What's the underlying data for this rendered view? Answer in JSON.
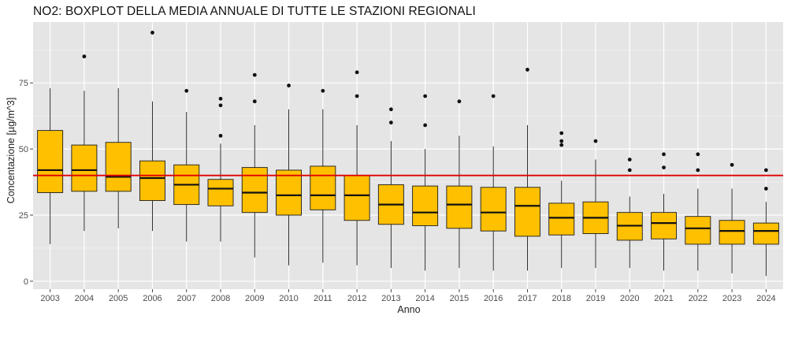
{
  "chart_data": {
    "type": "boxplot",
    "title": "NO2: BOXPLOT DELLA MEDIA ANNUALE DI TUTTE LE STAZIONI REGIONALI",
    "xlabel": "Anno",
    "ylabel": "Concentazione [µg/m^3]",
    "ylim": [
      -3,
      98
    ],
    "yticks": [
      0,
      25,
      50,
      75
    ],
    "grid": true,
    "background": "#e5e5e5",
    "box_color": "#ffc000",
    "reference_line": {
      "value": 40,
      "color": "#e00000"
    },
    "categories": [
      "2003",
      "2004",
      "2005",
      "2006",
      "2007",
      "2008",
      "2009",
      "2010",
      "2011",
      "2012",
      "2013",
      "2014",
      "2015",
      "2016",
      "2017",
      "2018",
      "2019",
      "2020",
      "2021",
      "2022",
      "2023",
      "2024"
    ],
    "boxes": [
      {
        "year": "2003",
        "low": 14,
        "q1": 33.5,
        "median": 42,
        "q3": 57,
        "high": 73,
        "outliers": []
      },
      {
        "year": "2004",
        "low": 19,
        "q1": 34,
        "median": 42,
        "q3": 51.5,
        "high": 72,
        "outliers": [
          85
        ]
      },
      {
        "year": "2005",
        "low": 20,
        "q1": 34,
        "median": 39.5,
        "q3": 52.5,
        "high": 73,
        "outliers": []
      },
      {
        "year": "2006",
        "low": 19,
        "q1": 30.5,
        "median": 39,
        "q3": 45.5,
        "high": 68,
        "outliers": [
          94
        ]
      },
      {
        "year": "2007",
        "low": 15,
        "q1": 29,
        "median": 36.5,
        "q3": 44,
        "high": 64,
        "outliers": [
          72
        ]
      },
      {
        "year": "2008",
        "low": 15,
        "q1": 28.5,
        "median": 35,
        "q3": 38.5,
        "high": 52,
        "outliers": [
          55,
          66.5,
          69
        ]
      },
      {
        "year": "2009",
        "low": 9,
        "q1": 26,
        "median": 33.5,
        "q3": 43,
        "high": 59,
        "outliers": [
          68,
          78
        ]
      },
      {
        "year": "2010",
        "low": 6,
        "q1": 25,
        "median": 32.5,
        "q3": 42,
        "high": 65,
        "outliers": [
          74
        ]
      },
      {
        "year": "2011",
        "low": 7,
        "q1": 27,
        "median": 32.5,
        "q3": 43.5,
        "high": 65,
        "outliers": [
          72
        ]
      },
      {
        "year": "2012",
        "low": 6,
        "q1": 23,
        "median": 32.5,
        "q3": 40,
        "high": 59,
        "outliers": [
          70,
          79
        ]
      },
      {
        "year": "2013",
        "low": 5,
        "q1": 21.5,
        "median": 29,
        "q3": 36.5,
        "high": 53,
        "outliers": [
          60,
          65
        ]
      },
      {
        "year": "2014",
        "low": 4,
        "q1": 21,
        "median": 26,
        "q3": 36,
        "high": 50,
        "outliers": [
          59,
          70
        ]
      },
      {
        "year": "2015",
        "low": 5,
        "q1": 20,
        "median": 29,
        "q3": 36,
        "high": 55,
        "outliers": [
          68
        ]
      },
      {
        "year": "2016",
        "low": 4,
        "q1": 19,
        "median": 26,
        "q3": 35.5,
        "high": 51,
        "outliers": [
          70
        ]
      },
      {
        "year": "2017",
        "low": 4,
        "q1": 17,
        "median": 28.5,
        "q3": 35.5,
        "high": 59,
        "outliers": [
          80
        ]
      },
      {
        "year": "2018",
        "low": 5,
        "q1": 17.5,
        "median": 24,
        "q3": 29.5,
        "high": 38,
        "outliers": [
          51.5,
          53,
          56
        ]
      },
      {
        "year": "2019",
        "low": 5,
        "q1": 18,
        "median": 24,
        "q3": 30,
        "high": 46,
        "outliers": [
          53
        ]
      },
      {
        "year": "2020",
        "low": 5,
        "q1": 15.5,
        "median": 21,
        "q3": 26,
        "high": 32,
        "outliers": [
          42,
          46
        ]
      },
      {
        "year": "2021",
        "low": 4,
        "q1": 16,
        "median": 22,
        "q3": 26,
        "high": 33,
        "outliers": [
          43,
          48
        ]
      },
      {
        "year": "2022",
        "low": 4,
        "q1": 14,
        "median": 20,
        "q3": 24.5,
        "high": 35,
        "outliers": [
          42,
          48
        ]
      },
      {
        "year": "2023",
        "low": 3,
        "q1": 14,
        "median": 19,
        "q3": 23,
        "high": 35,
        "outliers": [
          44
        ]
      },
      {
        "year": "2024",
        "low": 2,
        "q1": 14,
        "median": 19,
        "q3": 22,
        "high": 30,
        "outliers": [
          35,
          42
        ]
      }
    ]
  }
}
